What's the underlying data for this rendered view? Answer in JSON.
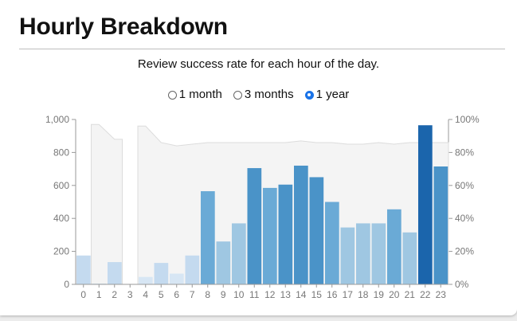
{
  "header": {
    "title": "Hourly Breakdown"
  },
  "description": "Review success rate for each hour of the day.",
  "range_options": [
    {
      "label": "1 month",
      "selected": false
    },
    {
      "label": "3 months",
      "selected": false
    },
    {
      "label": "1 year",
      "selected": true
    }
  ],
  "chart_data": {
    "type": "bar",
    "categories": [
      "0",
      "1",
      "2",
      "3",
      "4",
      "5",
      "6",
      "7",
      "8",
      "9",
      "10",
      "11",
      "12",
      "13",
      "14",
      "15",
      "16",
      "17",
      "18",
      "19",
      "20",
      "21",
      "22",
      "23"
    ],
    "series": [
      {
        "values": [
          175,
          5,
          135,
          0,
          45,
          130,
          65,
          175,
          565,
          260,
          370,
          705,
          585,
          605,
          720,
          650,
          500,
          345,
          370,
          370,
          455,
          315,
          965,
          715
        ]
      },
      {
        "values": [
          null,
          97,
          88,
          null,
          96,
          86,
          84,
          85,
          86,
          86,
          86,
          86,
          86,
          86,
          87,
          86,
          86,
          85,
          85,
          86,
          85,
          86,
          86,
          86
        ]
      }
    ],
    "ylim": [
      0,
      1000
    ],
    "y2lim": [
      0,
      100
    ],
    "yticks": [
      "0",
      "200",
      "400",
      "600",
      "800",
      "1,000"
    ],
    "y2ticks": [
      "0%",
      "20%",
      "40%",
      "60%",
      "80%",
      "100%"
    ],
    "bar_colors": [
      "#d7e6f4",
      "#c4daef",
      "#9fc7e2",
      "#6aaad6",
      "#4a93c8",
      "#1b65ac"
    ],
    "area_color": "#f4f4f4"
  }
}
